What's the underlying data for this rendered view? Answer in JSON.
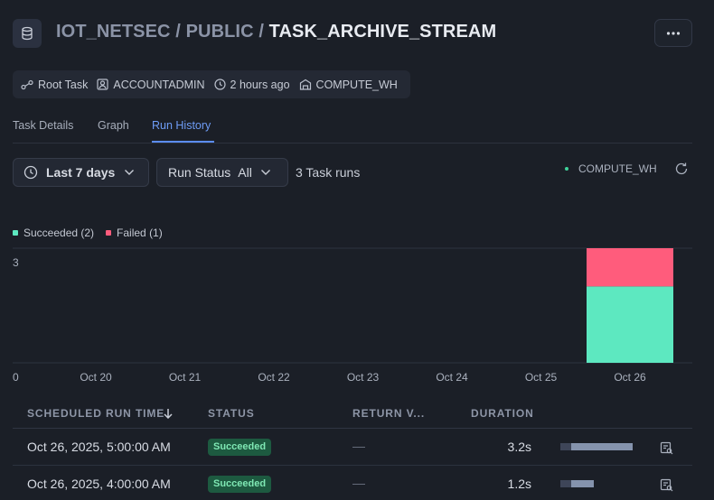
{
  "header": {
    "database": "IOT_NETSEC",
    "separator": "/",
    "schema": "PUBLIC",
    "task_name": "TASK_ARCHIVE_STREAM"
  },
  "meta": {
    "task_type": "Root Task",
    "owner": "ACCOUNTADMIN",
    "last_run": "2 hours ago",
    "warehouse": "COMPUTE_WH"
  },
  "tabs": [
    "Task Details",
    "Graph",
    "Run History"
  ],
  "active_tab": "Run History",
  "filters": {
    "date_range": "Last 7 days",
    "run_status_label": "Run Status",
    "run_status_value": "All",
    "task_runs_count": "3 Task runs",
    "warehouse_legend": "COMPUTE_WH"
  },
  "colors": {
    "succeeded": "#5de8c0",
    "failed": "#ff5c7c",
    "accent": "#5b8cf3"
  },
  "chart_data": {
    "type": "bar",
    "stacked": true,
    "categories": [
      "Oct 20",
      "Oct 21",
      "Oct 22",
      "Oct 23",
      "Oct 24",
      "Oct 25",
      "Oct 26"
    ],
    "series": [
      {
        "name": "Succeeded (2)",
        "key": "succeeded",
        "values": [
          0,
          0,
          0,
          0,
          0,
          0,
          2
        ]
      },
      {
        "name": "Failed (1)",
        "key": "failed",
        "values": [
          0,
          0,
          0,
          0,
          0,
          0,
          1
        ]
      }
    ],
    "ylim": [
      0,
      3
    ],
    "yticks": [
      "0",
      "3"
    ],
    "legend": "top-left"
  },
  "table": {
    "columns": [
      "SCHEDULED RUN TIME",
      "STATUS",
      "RETURN V...",
      "DURATION"
    ],
    "rows": [
      {
        "time": "Oct 26, 2025, 5:00:00 AM",
        "status": "Succeeded",
        "return_value": "—",
        "duration": "3.2s",
        "duration_seconds": 3.2
      },
      {
        "time": "Oct 26, 2025, 4:00:00 AM",
        "status": "Succeeded",
        "return_value": "—",
        "duration": "1.2s",
        "duration_seconds": 1.2
      }
    ]
  }
}
